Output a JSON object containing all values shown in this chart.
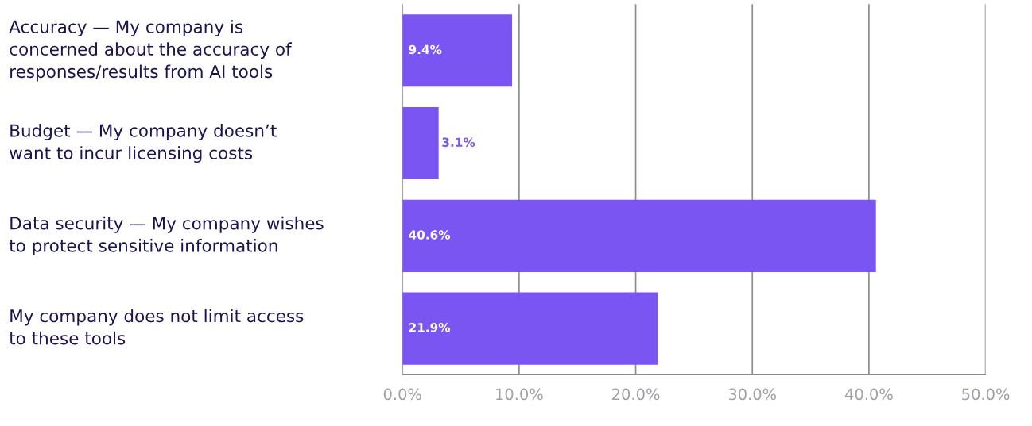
{
  "chart_data": {
    "type": "bar",
    "orientation": "horizontal",
    "categories": [
      "Accuracy — My company is\nconcerned about the accuracy of\nresponses/results from AI tools",
      "Budget — My company doesn’t\nwant to incur licensing costs",
      "Data security — My company wishes\nto protect sensitive information",
      "My company does not limit access\nto these tools"
    ],
    "values": [
      9.4,
      3.1,
      40.6,
      21.9
    ],
    "value_labels": [
      "9.4%",
      "3.1%",
      "40.6%",
      "21.9%"
    ],
    "color": "#7a55f2",
    "xlim": [
      0,
      50
    ],
    "xticks": [
      {
        "value": 0,
        "label": "0.0%"
      },
      {
        "value": 10,
        "label": "10.0%"
      },
      {
        "value": 20,
        "label": "20.0%"
      },
      {
        "value": 30,
        "label": "30.0%"
      },
      {
        "value": 40,
        "label": "40.0%"
      },
      {
        "value": 50,
        "label": "50.0%"
      }
    ],
    "grid": "x"
  }
}
